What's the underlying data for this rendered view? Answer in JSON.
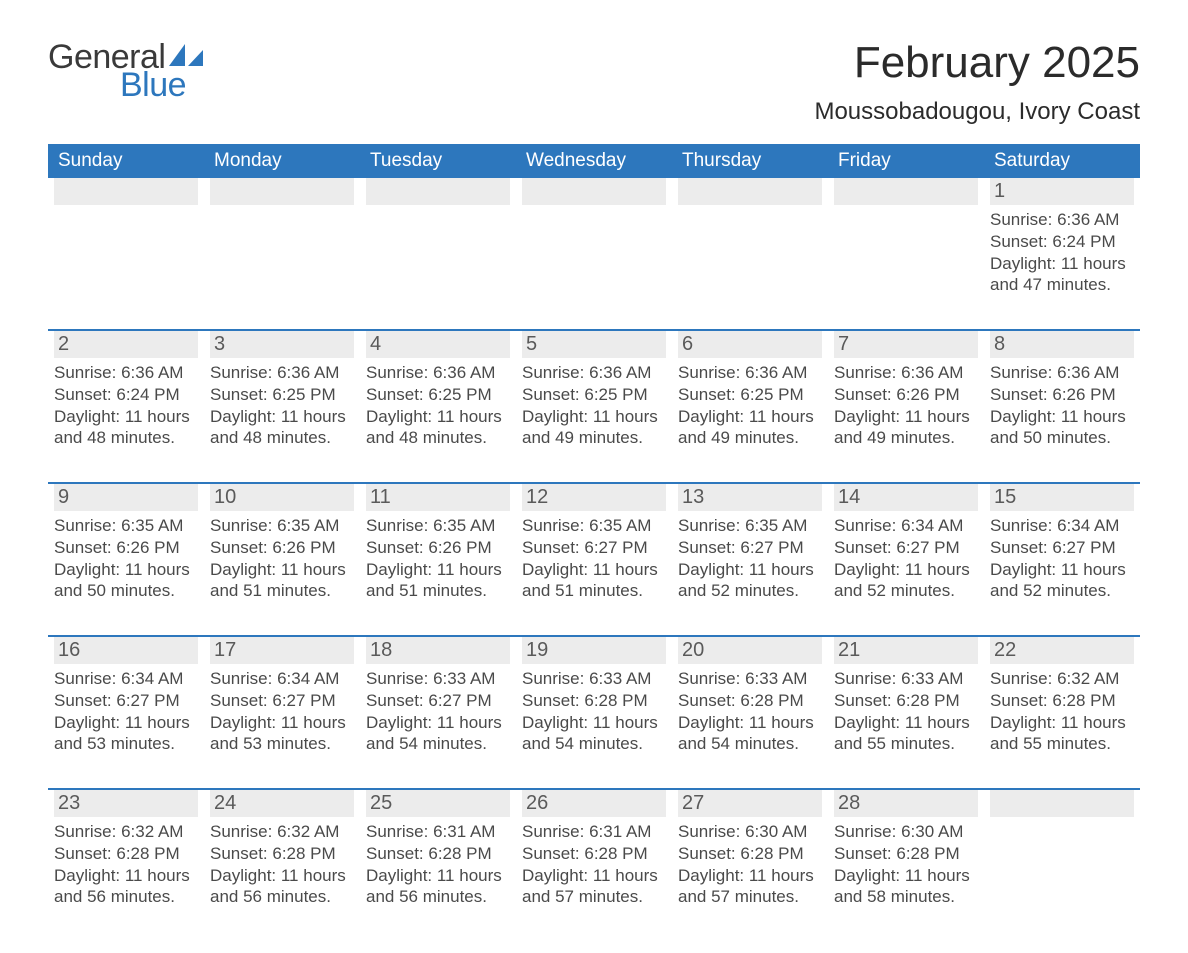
{
  "brand": {
    "word1": "General",
    "word2": "Blue",
    "word1_color": "#3a3a3a",
    "word2_color": "#2d77bd",
    "sail_fill": "#2d77bd"
  },
  "header": {
    "month_title": "February 2025",
    "location": "Moussobadougou, Ivory Coast"
  },
  "colors": {
    "header_blue": "#2d77bd",
    "week_rule": "#2d77bd",
    "day_strip": "#ececec",
    "text": "#2b2b2b",
    "muted": "#4a4a4a",
    "background": "#ffffff"
  },
  "typography": {
    "month_title_pt": 44,
    "location_pt": 24,
    "dow_pt": 19,
    "daynum_pt": 20,
    "body_pt": 17
  },
  "days_of_week": [
    "Sunday",
    "Monday",
    "Tuesday",
    "Wednesday",
    "Thursday",
    "Friday",
    "Saturday"
  ],
  "labels": {
    "sunrise": "Sunrise",
    "sunset": "Sunset",
    "daylight": "Daylight"
  },
  "calendar": {
    "start_weekday_index": 6,
    "num_days": 28,
    "days": [
      {
        "n": 1,
        "sunrise": "6:36 AM",
        "sunset": "6:24 PM",
        "daylight": "11 hours and 47 minutes."
      },
      {
        "n": 2,
        "sunrise": "6:36 AM",
        "sunset": "6:24 PM",
        "daylight": "11 hours and 48 minutes."
      },
      {
        "n": 3,
        "sunrise": "6:36 AM",
        "sunset": "6:25 PM",
        "daylight": "11 hours and 48 minutes."
      },
      {
        "n": 4,
        "sunrise": "6:36 AM",
        "sunset": "6:25 PM",
        "daylight": "11 hours and 48 minutes."
      },
      {
        "n": 5,
        "sunrise": "6:36 AM",
        "sunset": "6:25 PM",
        "daylight": "11 hours and 49 minutes."
      },
      {
        "n": 6,
        "sunrise": "6:36 AM",
        "sunset": "6:25 PM",
        "daylight": "11 hours and 49 minutes."
      },
      {
        "n": 7,
        "sunrise": "6:36 AM",
        "sunset": "6:26 PM",
        "daylight": "11 hours and 49 minutes."
      },
      {
        "n": 8,
        "sunrise": "6:36 AM",
        "sunset": "6:26 PM",
        "daylight": "11 hours and 50 minutes."
      },
      {
        "n": 9,
        "sunrise": "6:35 AM",
        "sunset": "6:26 PM",
        "daylight": "11 hours and 50 minutes."
      },
      {
        "n": 10,
        "sunrise": "6:35 AM",
        "sunset": "6:26 PM",
        "daylight": "11 hours and 51 minutes."
      },
      {
        "n": 11,
        "sunrise": "6:35 AM",
        "sunset": "6:26 PM",
        "daylight": "11 hours and 51 minutes."
      },
      {
        "n": 12,
        "sunrise": "6:35 AM",
        "sunset": "6:27 PM",
        "daylight": "11 hours and 51 minutes."
      },
      {
        "n": 13,
        "sunrise": "6:35 AM",
        "sunset": "6:27 PM",
        "daylight": "11 hours and 52 minutes."
      },
      {
        "n": 14,
        "sunrise": "6:34 AM",
        "sunset": "6:27 PM",
        "daylight": "11 hours and 52 minutes."
      },
      {
        "n": 15,
        "sunrise": "6:34 AM",
        "sunset": "6:27 PM",
        "daylight": "11 hours and 52 minutes."
      },
      {
        "n": 16,
        "sunrise": "6:34 AM",
        "sunset": "6:27 PM",
        "daylight": "11 hours and 53 minutes."
      },
      {
        "n": 17,
        "sunrise": "6:34 AM",
        "sunset": "6:27 PM",
        "daylight": "11 hours and 53 minutes."
      },
      {
        "n": 18,
        "sunrise": "6:33 AM",
        "sunset": "6:27 PM",
        "daylight": "11 hours and 54 minutes."
      },
      {
        "n": 19,
        "sunrise": "6:33 AM",
        "sunset": "6:28 PM",
        "daylight": "11 hours and 54 minutes."
      },
      {
        "n": 20,
        "sunrise": "6:33 AM",
        "sunset": "6:28 PM",
        "daylight": "11 hours and 54 minutes."
      },
      {
        "n": 21,
        "sunrise": "6:33 AM",
        "sunset": "6:28 PM",
        "daylight": "11 hours and 55 minutes."
      },
      {
        "n": 22,
        "sunrise": "6:32 AM",
        "sunset": "6:28 PM",
        "daylight": "11 hours and 55 minutes."
      },
      {
        "n": 23,
        "sunrise": "6:32 AM",
        "sunset": "6:28 PM",
        "daylight": "11 hours and 56 minutes."
      },
      {
        "n": 24,
        "sunrise": "6:32 AM",
        "sunset": "6:28 PM",
        "daylight": "11 hours and 56 minutes."
      },
      {
        "n": 25,
        "sunrise": "6:31 AM",
        "sunset": "6:28 PM",
        "daylight": "11 hours and 56 minutes."
      },
      {
        "n": 26,
        "sunrise": "6:31 AM",
        "sunset": "6:28 PM",
        "daylight": "11 hours and 57 minutes."
      },
      {
        "n": 27,
        "sunrise": "6:30 AM",
        "sunset": "6:28 PM",
        "daylight": "11 hours and 57 minutes."
      },
      {
        "n": 28,
        "sunrise": "6:30 AM",
        "sunset": "6:28 PM",
        "daylight": "11 hours and 58 minutes."
      }
    ]
  }
}
